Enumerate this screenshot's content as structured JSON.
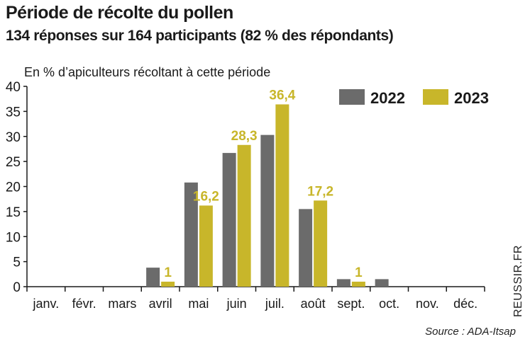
{
  "header": {
    "title": "Période de récolte du pollen",
    "subtitle": "134 réponses sur 164 participants (82 % des répondants)",
    "unit_label": "En % d’apiculteurs récoltant à cette période"
  },
  "footer": {
    "source": "Source : ADA-Itsap",
    "brand": "REUSSIR.FR"
  },
  "chart_data": {
    "type": "bar",
    "categories": [
      "janv.",
      "févr.",
      "mars",
      "avril",
      "mai",
      "juin",
      "juil.",
      "août",
      "sept.",
      "oct.",
      "nov.",
      "déc."
    ],
    "series": [
      {
        "name": "2022",
        "color": "#6b6b6b",
        "values": [
          0,
          0,
          0,
          3.8,
          20.8,
          26.7,
          30.3,
          15.5,
          1.5,
          1.5,
          0,
          0
        ]
      },
      {
        "name": "2023",
        "color": "#c8b62a",
        "values": [
          0,
          0,
          0,
          1,
          16.2,
          28.3,
          36.4,
          17.2,
          1,
          0,
          0,
          0
        ]
      }
    ],
    "data_labels": {
      "2023": [
        "",
        "",
        "",
        "1",
        "16,2",
        "28,3",
        "36,4",
        "17,2",
        "1",
        "",
        "",
        ""
      ]
    },
    "yticks": [
      "0",
      "5",
      "10",
      "15",
      "20",
      "25",
      "30",
      "35",
      "40"
    ],
    "ylim": [
      0,
      40
    ],
    "grid": false,
    "legend_position": "top-right"
  }
}
